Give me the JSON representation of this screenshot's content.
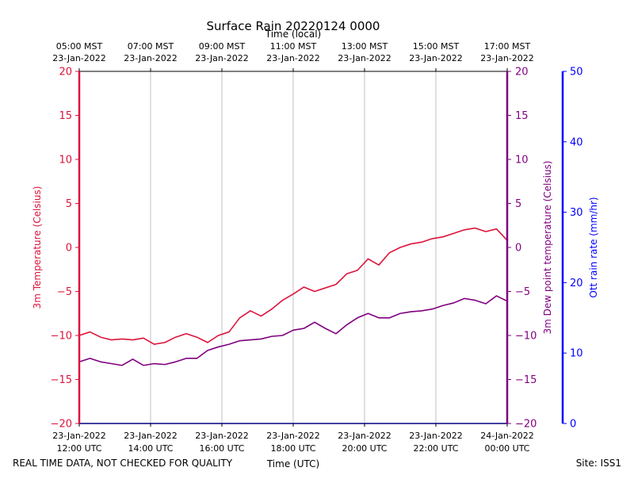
{
  "chart_data": {
    "type": "line",
    "title": "Surface Rain 20220124 0000",
    "top_axis_label": "Time (local)",
    "xlabel": "Time (UTC)",
    "footer_left": "REAL TIME DATA, NOT CHECKED FOR QUALITY",
    "footer_right": "Site: ISS1",
    "x_range_utc": [
      "2022-01-23 12:00",
      "2022-01-24 00:00"
    ],
    "x_ticks_bottom": [
      {
        "l1": "23-Jan-2022",
        "l2": "12:00 UTC"
      },
      {
        "l1": "23-Jan-2022",
        "l2": "14:00 UTC"
      },
      {
        "l1": "23-Jan-2022",
        "l2": "16:00 UTC"
      },
      {
        "l1": "23-Jan-2022",
        "l2": "18:00 UTC"
      },
      {
        "l1": "23-Jan-2022",
        "l2": "20:00 UTC"
      },
      {
        "l1": "23-Jan-2022",
        "l2": "22:00 UTC"
      },
      {
        "l1": "24-Jan-2022",
        "l2": "00:00 UTC"
      }
    ],
    "x_ticks_top": [
      {
        "l1": "05:00 MST",
        "l2": "23-Jan-2022"
      },
      {
        "l1": "07:00 MST",
        "l2": "23-Jan-2022"
      },
      {
        "l1": "09:00 MST",
        "l2": "23-Jan-2022"
      },
      {
        "l1": "11:00 MST",
        "l2": "23-Jan-2022"
      },
      {
        "l1": "13:00 MST",
        "l2": "23-Jan-2022"
      },
      {
        "l1": "15:00 MST",
        "l2": "23-Jan-2022"
      },
      {
        "l1": "17:00 MST",
        "l2": "23-Jan-2022"
      }
    ],
    "grid": "vertical",
    "axes": {
      "left": {
        "label": "3m Temperature (Celsius)",
        "range": [
          -20,
          20
        ],
        "ticks": [
          -20,
          -15,
          -10,
          -5,
          0,
          5,
          10,
          15,
          20
        ],
        "color": "#dc143c"
      },
      "right": {
        "label": "3m Dew point temperature (Celsius)",
        "range": [
          -20,
          20
        ],
        "ticks": [
          -20,
          -15,
          -10,
          -5,
          0,
          5,
          10,
          15,
          20
        ],
        "color": "#800080"
      },
      "right2": {
        "label": "Ott rain rate (mm/hr)",
        "range": [
          0,
          50
        ],
        "ticks": [
          0,
          10,
          20,
          30,
          40,
          50
        ],
        "color": "#0000ff"
      }
    },
    "series": [
      {
        "axis": "left",
        "color": "#dc143c",
        "x_hours": [
          0,
          0.3,
          0.6,
          0.9,
          1.2,
          1.5,
          1.8,
          2.1,
          2.4,
          2.7,
          3.0,
          3.3,
          3.6,
          3.9,
          4.2,
          4.5,
          4.8,
          5.1,
          5.4,
          5.7,
          6.0,
          6.3,
          6.6,
          6.9,
          7.2,
          7.5,
          7.8,
          8.1,
          8.4,
          8.7,
          9.0,
          9.3,
          9.6,
          9.9,
          10.2,
          10.5,
          10.8,
          11.1,
          11.4,
          11.7,
          12.0
        ],
        "values": [
          -10.0,
          -9.6,
          -10.2,
          -10.5,
          -10.4,
          -10.5,
          -10.3,
          -11.0,
          -10.8,
          -10.2,
          -9.8,
          -10.2,
          -10.8,
          -10.0,
          -9.6,
          -8.0,
          -7.2,
          -7.8,
          -7.0,
          -6.0,
          -5.3,
          -4.5,
          -5.0,
          -4.6,
          -4.2,
          -3.0,
          -2.6,
          -1.3,
          -2.0,
          -0.6,
          0.0,
          0.4,
          0.6,
          1.0,
          1.2,
          1.6,
          2.0,
          2.2,
          1.8,
          2.1,
          0.8
        ]
      },
      {
        "axis": "right",
        "color": "#800080",
        "x_hours": [
          0,
          0.3,
          0.6,
          0.9,
          1.2,
          1.5,
          1.8,
          2.1,
          2.4,
          2.7,
          3.0,
          3.3,
          3.6,
          3.9,
          4.2,
          4.5,
          4.8,
          5.1,
          5.4,
          5.7,
          6.0,
          6.3,
          6.6,
          6.9,
          7.2,
          7.5,
          7.8,
          8.1,
          8.4,
          8.7,
          9.0,
          9.3,
          9.6,
          9.9,
          10.2,
          10.5,
          10.8,
          11.1,
          11.4,
          11.7,
          12.0
        ],
        "values": [
          -13.0,
          -12.6,
          -13.0,
          -13.2,
          -13.4,
          -12.7,
          -13.4,
          -13.2,
          -13.3,
          -13.0,
          -12.6,
          -12.6,
          -11.7,
          -11.3,
          -11.0,
          -10.6,
          -10.5,
          -10.4,
          -10.1,
          -10.0,
          -9.4,
          -9.2,
          -8.5,
          -9.2,
          -9.8,
          -8.8,
          -8.0,
          -7.5,
          -8.0,
          -8.0,
          -7.5,
          -7.3,
          -7.2,
          -7.0,
          -6.6,
          -6.3,
          -5.8,
          -6.0,
          -6.4,
          -5.5,
          -6.1
        ]
      }
    ]
  }
}
